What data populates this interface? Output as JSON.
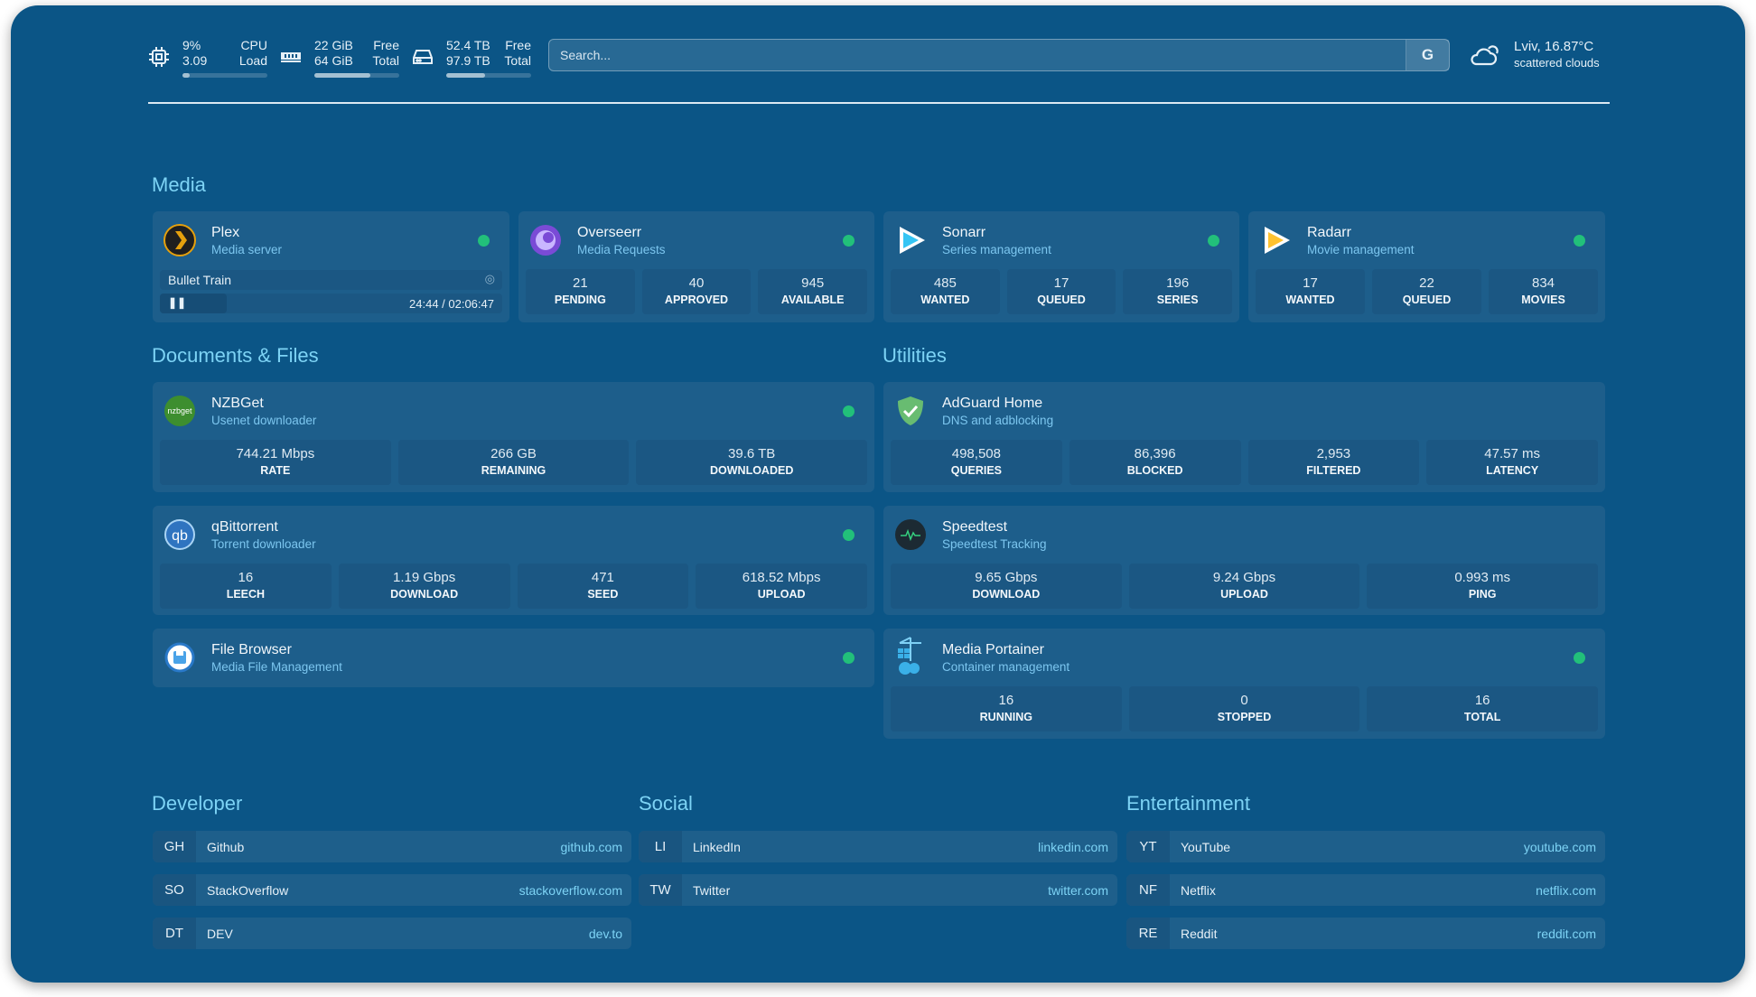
{
  "resources": {
    "cpu": {
      "top": "9%",
      "bottom": "3.09",
      "label_top": "CPU",
      "label_bottom": "Load",
      "percent": 9
    },
    "memory": {
      "top": "22 GiB",
      "bottom": "64 GiB",
      "label_top": "Free",
      "label_bottom": "Total",
      "percent": 66
    },
    "disk": {
      "top": "52.4 TB",
      "bottom": "97.9 TB",
      "label_top": "Free",
      "label_bottom": "Total",
      "percent": 46
    }
  },
  "search": {
    "placeholder": "Search...",
    "engine_label": "G"
  },
  "weather": {
    "location_temp": "Lviv, 16.87°C",
    "condition": "scattered clouds"
  },
  "sections": {
    "media": "Media",
    "documents": "Documents & Files",
    "utilities": "Utilities",
    "developer": "Developer",
    "social": "Social",
    "entertainment": "Entertainment"
  },
  "colors": {
    "accent": "#7dd3f5",
    "status_online": "#22c07a",
    "background": "#0b5586"
  },
  "plex": {
    "name": "Plex",
    "desc": "Media server",
    "now_playing": "Bullet Train",
    "time": "24:44 / 02:06:47",
    "progress_percent": 19.5
  },
  "media": [
    {
      "name": "Overseerr",
      "desc": "Media Requests",
      "stats": [
        {
          "v": "21",
          "k": "PENDING"
        },
        {
          "v": "40",
          "k": "APPROVED"
        },
        {
          "v": "945",
          "k": "AVAILABLE"
        }
      ]
    },
    {
      "name": "Sonarr",
      "desc": "Series management",
      "stats": [
        {
          "v": "485",
          "k": "WANTED"
        },
        {
          "v": "17",
          "k": "QUEUED"
        },
        {
          "v": "196",
          "k": "SERIES"
        }
      ]
    },
    {
      "name": "Radarr",
      "desc": "Movie management",
      "stats": [
        {
          "v": "17",
          "k": "WANTED"
        },
        {
          "v": "22",
          "k": "QUEUED"
        },
        {
          "v": "834",
          "k": "MOVIES"
        }
      ]
    }
  ],
  "services": {
    "nzbget": {
      "name": "NZBGet",
      "desc": "Usenet downloader",
      "logo_text": "nzbget",
      "stats": [
        {
          "v": "744.21 Mbps",
          "k": "RATE"
        },
        {
          "v": "266 GB",
          "k": "REMAINING"
        },
        {
          "v": "39.6 TB",
          "k": "DOWNLOADED"
        }
      ]
    },
    "qbittorrent": {
      "name": "qBittorrent",
      "desc": "Torrent downloader",
      "logo_text": "qb",
      "stats": [
        {
          "v": "16",
          "k": "LEECH"
        },
        {
          "v": "1.19 Gbps",
          "k": "DOWNLOAD"
        },
        {
          "v": "471",
          "k": "SEED"
        },
        {
          "v": "618.52 Mbps",
          "k": "UPLOAD"
        }
      ]
    },
    "filebrowser": {
      "name": "File Browser",
      "desc": "Media File Management"
    },
    "adguard": {
      "name": "AdGuard Home",
      "desc": "DNS and adblocking",
      "stats": [
        {
          "v": "498,508",
          "k": "QUERIES"
        },
        {
          "v": "86,396",
          "k": "BLOCKED"
        },
        {
          "v": "2,953",
          "k": "FILTERED"
        },
        {
          "v": "47.57 ms",
          "k": "LATENCY"
        }
      ]
    },
    "speedtest": {
      "name": "Speedtest",
      "desc": "Speedtest Tracking",
      "stats": [
        {
          "v": "9.65 Gbps",
          "k": "DOWNLOAD"
        },
        {
          "v": "9.24 Gbps",
          "k": "UPLOAD"
        },
        {
          "v": "0.993 ms",
          "k": "PING"
        }
      ]
    },
    "portainer": {
      "name": "Media Portainer",
      "desc": "Container management",
      "stats": [
        {
          "v": "16",
          "k": "RUNNING"
        },
        {
          "v": "0",
          "k": "STOPPED"
        },
        {
          "v": "16",
          "k": "TOTAL"
        }
      ]
    }
  },
  "bookmarks": {
    "developer": [
      {
        "abbr": "GH",
        "name": "Github",
        "url": "github.com"
      },
      {
        "abbr": "SO",
        "name": "StackOverflow",
        "url": "stackoverflow.com"
      },
      {
        "abbr": "DT",
        "name": "DEV",
        "url": "dev.to"
      }
    ],
    "social": [
      {
        "abbr": "LI",
        "name": "LinkedIn",
        "url": "linkedin.com"
      },
      {
        "abbr": "TW",
        "name": "Twitter",
        "url": "twitter.com"
      }
    ],
    "entertainment": [
      {
        "abbr": "YT",
        "name": "YouTube",
        "url": "youtube.com"
      },
      {
        "abbr": "NF",
        "name": "Netflix",
        "url": "netflix.com"
      },
      {
        "abbr": "RE",
        "name": "Reddit",
        "url": "reddit.com"
      }
    ]
  }
}
